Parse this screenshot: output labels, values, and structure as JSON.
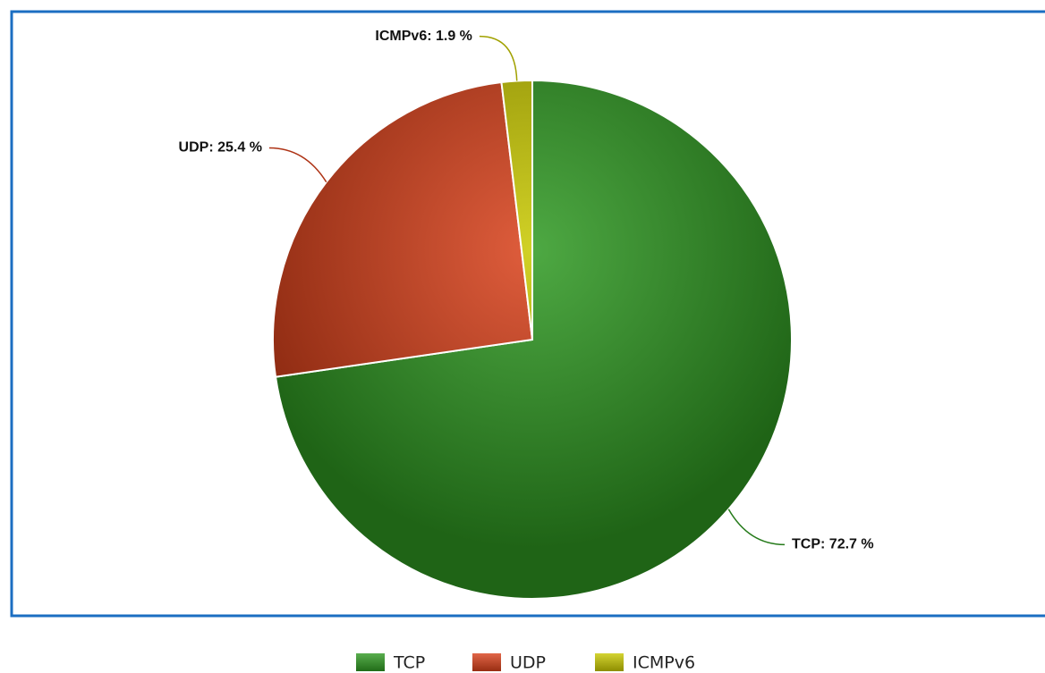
{
  "chart_data": {
    "type": "pie",
    "categories": [
      "TCP",
      "UDP",
      "ICMPv6"
    ],
    "values": [
      72.7,
      25.4,
      1.9
    ],
    "value_labels": [
      "TCP: 72.7 %",
      "UDP: 25.4 %",
      "ICMPv6: 1.9 %"
    ],
    "colors": [
      "#2f9a22",
      "#d9401a",
      "#c9c900"
    ],
    "legend": "bottom"
  }
}
